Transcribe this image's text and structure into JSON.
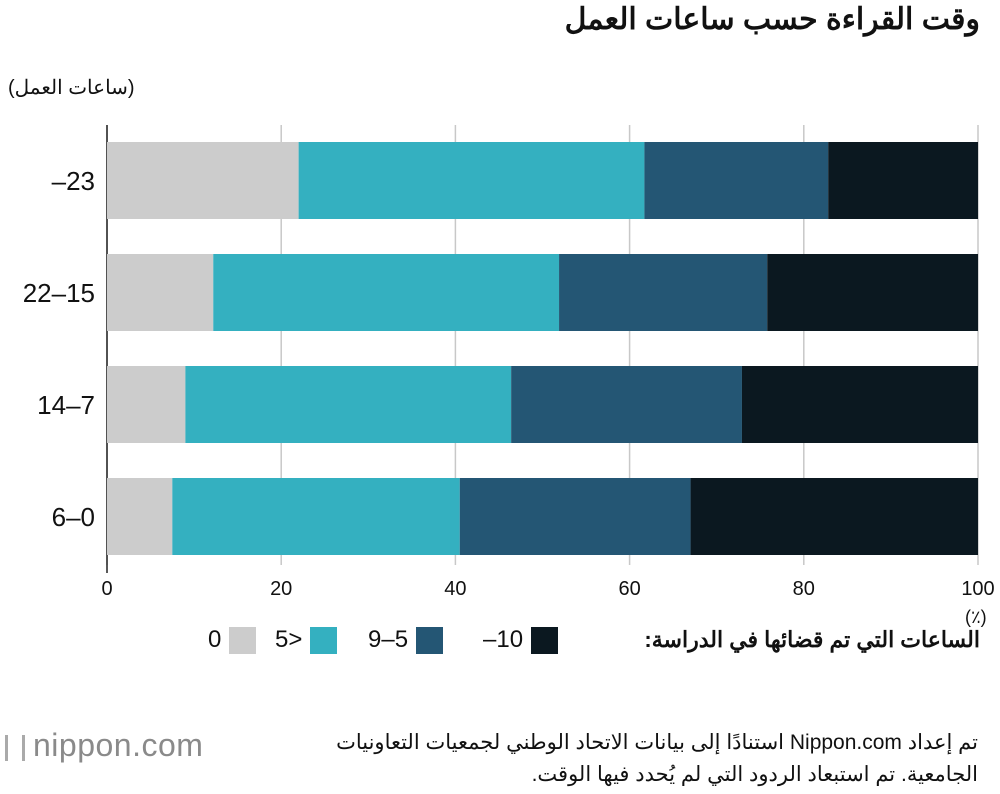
{
  "title": "وقت القراءة حسب ساعات العمل",
  "y_axis_title": "(ساعات العمل)",
  "x_unit": "(٪)",
  "legend_title": "الساعات التي تم قضائها في الدراسة:",
  "note_lines": [
    "تم إعداد Nippon.com استنادًا إلى بيانات الاتحاد الوطني لجمعيات التعاونيات",
    "الجامعية. تم استبعاد الردود التي لم يُحدد فيها الوقت."
  ],
  "logo": "nippon.com",
  "chart_data": {
    "type": "bar",
    "orientation": "horizontal",
    "stacked": true,
    "categories": [
      "–23",
      "22–15",
      "14–7",
      "6–0"
    ],
    "series": [
      {
        "name": "0",
        "color": "#cccccc",
        "values": [
          22.0,
          12.2,
          9.0,
          7.5
        ]
      },
      {
        "name": "5>",
        "color": "#34b0c0",
        "values": [
          39.7,
          39.7,
          37.4,
          33.0
        ]
      },
      {
        "name": "9–5",
        "color": "#245674",
        "values": [
          21.1,
          23.9,
          26.5,
          26.5
        ]
      },
      {
        "name": "–10",
        "color": "#0b1820",
        "values": [
          17.2,
          24.2,
          27.1,
          33.0
        ]
      }
    ],
    "xlim": [
      0,
      100
    ],
    "xticks": [
      "0",
      "20",
      "40",
      "60",
      "80",
      "100"
    ],
    "grid": true,
    "legend_position": "bottom"
  }
}
